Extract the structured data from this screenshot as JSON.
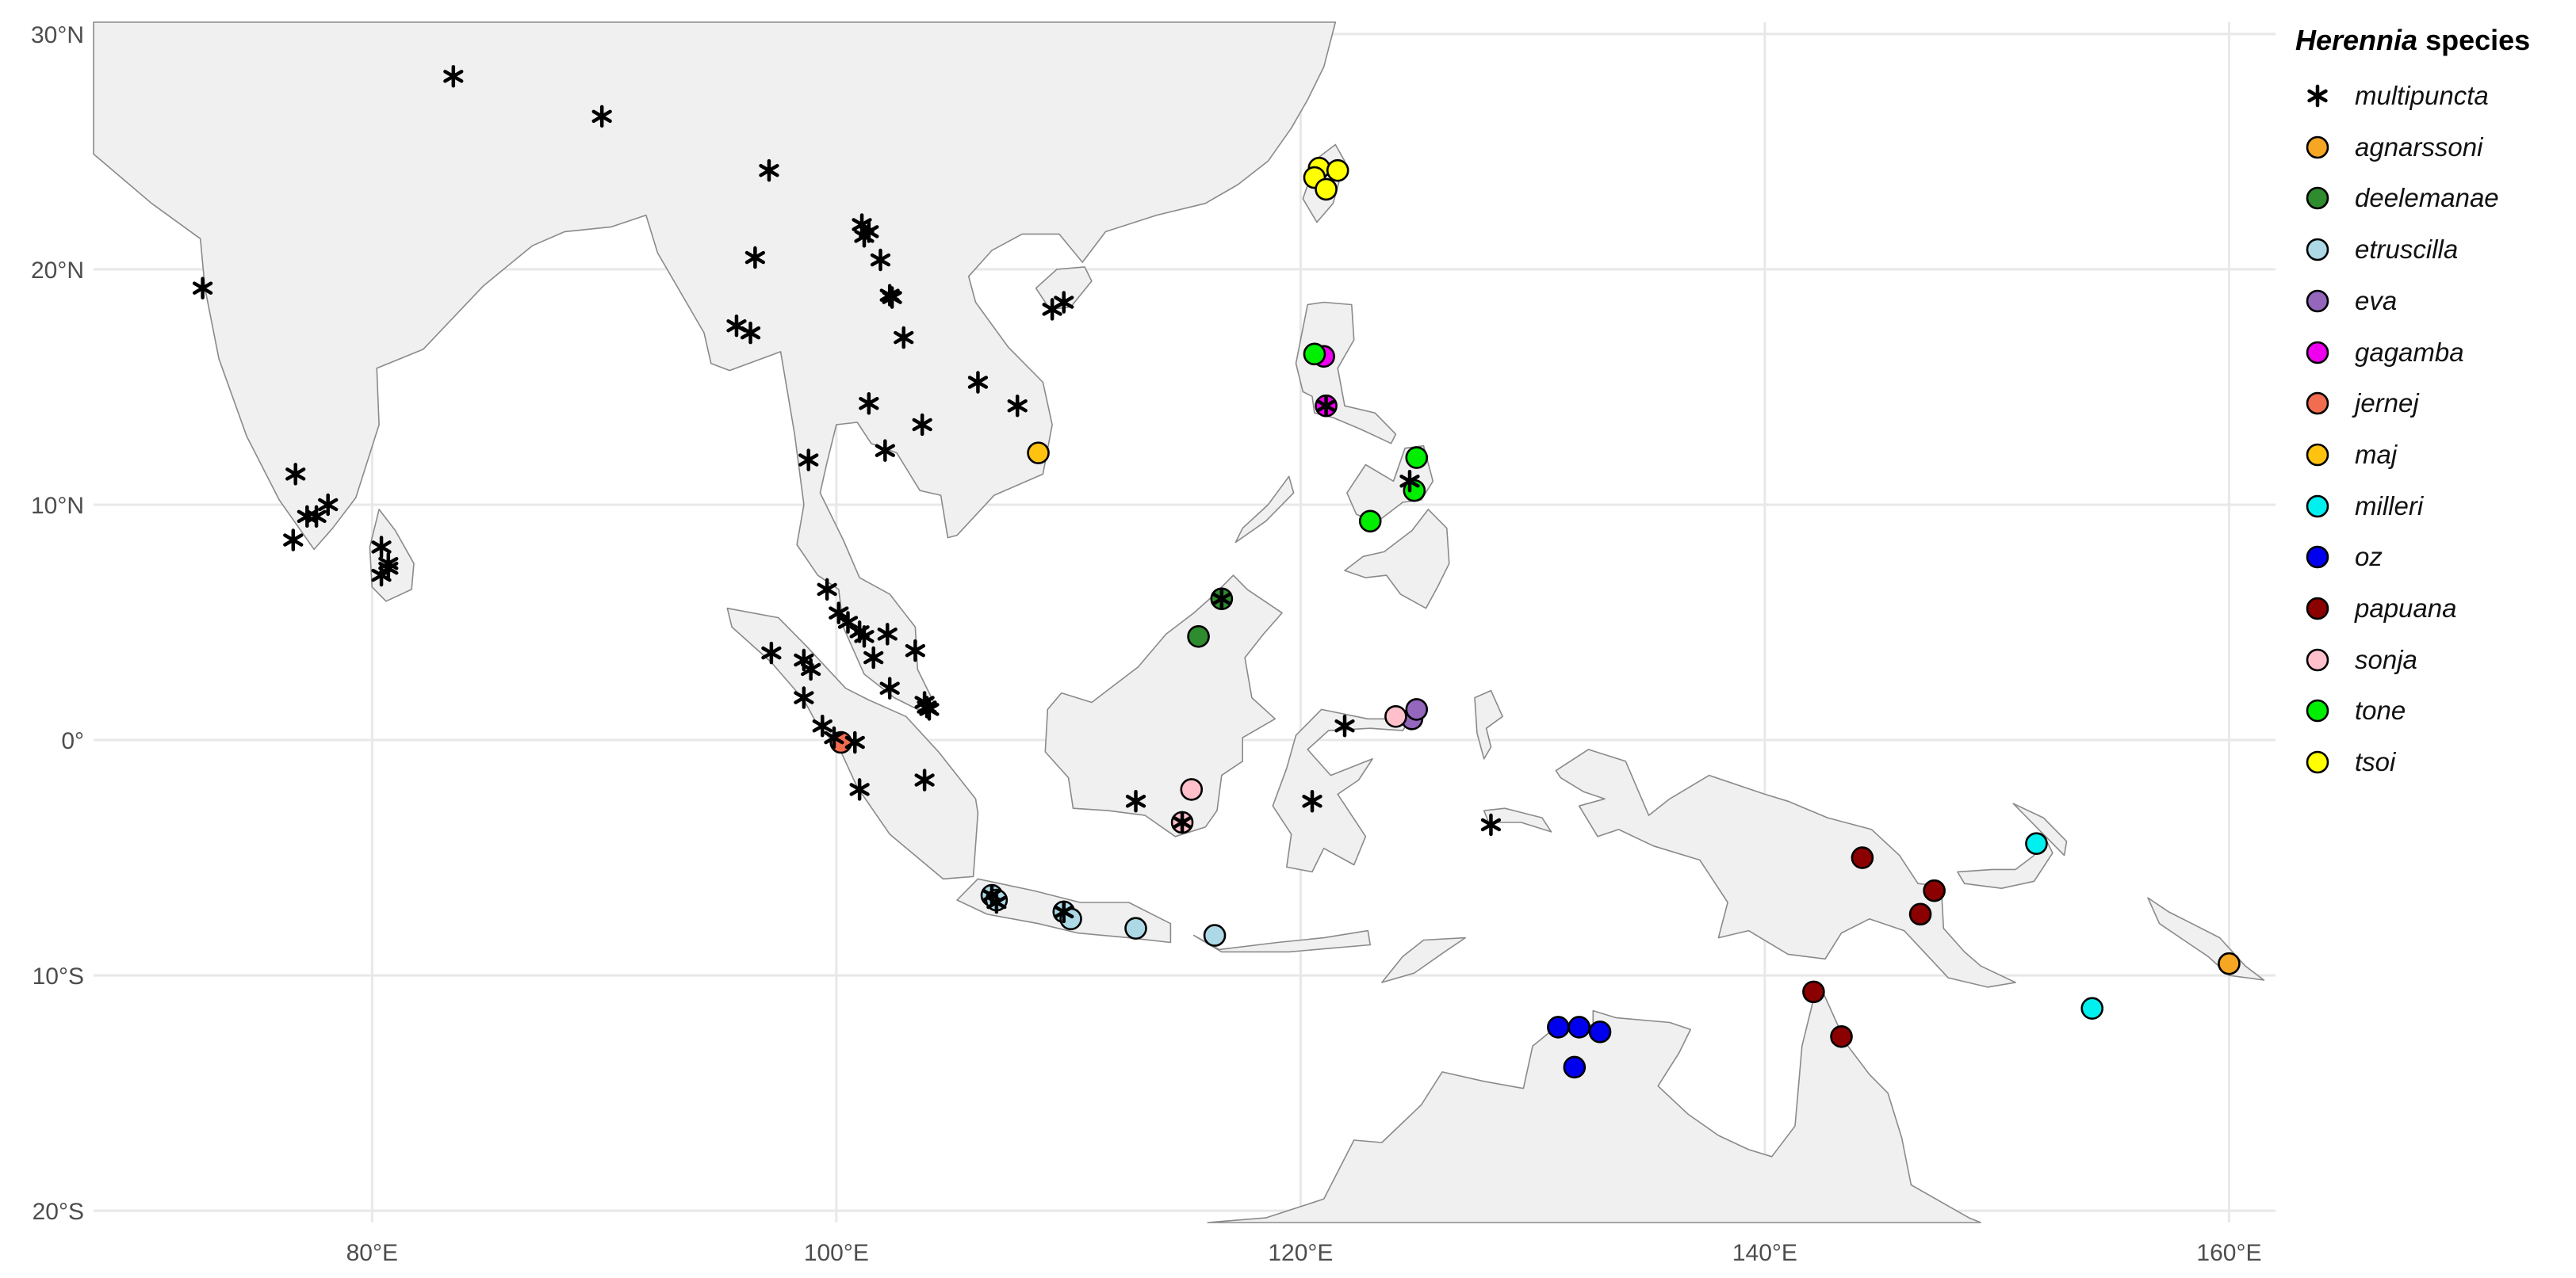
{
  "map": {
    "x_ticks": [
      {
        "lon": 80,
        "label": "80°E"
      },
      {
        "lon": 100,
        "label": "100°E"
      },
      {
        "lon": 120,
        "label": "120°E"
      },
      {
        "lon": 140,
        "label": "140°E"
      },
      {
        "lon": 160,
        "label": "160°E"
      }
    ],
    "y_ticks": [
      {
        "lat": 30,
        "label": "30°N"
      },
      {
        "lat": 20,
        "label": "20°N"
      },
      {
        "lat": 10,
        "label": "10°N"
      },
      {
        "lat": 0,
        "label": "0°"
      },
      {
        "lat": -10,
        "label": "10°S"
      },
      {
        "lat": -20,
        "label": "20°S"
      }
    ],
    "lon_range": [
      68,
      162
    ],
    "lat_range": [
      -20.5,
      30.5
    ],
    "colors": {
      "ocean": "#ffffff",
      "land": "#f0f0f0",
      "border": "#8a8a8a",
      "grid": "#e8e8e8"
    }
  },
  "legend": {
    "title_genus": "Herennia",
    "title_rest": " species",
    "species": [
      {
        "name": "multipuncta",
        "marker": "asterisk",
        "color": "#000000"
      },
      {
        "name": "agnarssoni",
        "marker": "circle",
        "color": "#f5a623"
      },
      {
        "name": "deelemanae",
        "marker": "circle",
        "color": "#2e8b2e"
      },
      {
        "name": "etruscilla",
        "marker": "circle",
        "color": "#add8e6"
      },
      {
        "name": "eva",
        "marker": "circle",
        "color": "#9467bd"
      },
      {
        "name": "gagamba",
        "marker": "circle",
        "color": "#ee00ee"
      },
      {
        "name": "jernej",
        "marker": "circle",
        "color": "#f26c4f"
      },
      {
        "name": "maj",
        "marker": "circle",
        "color": "#ffc20e"
      },
      {
        "name": "milleri",
        "marker": "circle",
        "color": "#00f0f0"
      },
      {
        "name": "oz",
        "marker": "circle",
        "color": "#0000ee"
      },
      {
        "name": "papuana",
        "marker": "circle",
        "color": "#8b0000"
      },
      {
        "name": "sonja",
        "marker": "circle",
        "color": "#ffc0cb"
      },
      {
        "name": "tone",
        "marker": "circle",
        "color": "#00ee00"
      },
      {
        "name": "tsoi",
        "marker": "circle",
        "color": "#ffff00"
      }
    ]
  },
  "records": {
    "multipuncta": [
      [
        83.5,
        28.2
      ],
      [
        89.9,
        26.5
      ],
      [
        72.7,
        19.2
      ],
      [
        76.7,
        11.3
      ],
      [
        77.2,
        9.5
      ],
      [
        77.6,
        9.5
      ],
      [
        78.1,
        10.0
      ],
      [
        76.6,
        8.5
      ],
      [
        80.4,
        8.2
      ],
      [
        80.7,
        7.3
      ],
      [
        80.4,
        7.0
      ],
      [
        80.7,
        7.5
      ],
      [
        97.1,
        24.2
      ],
      [
        96.5,
        20.5
      ],
      [
        101.1,
        21.9
      ],
      [
        101.4,
        21.6
      ],
      [
        101.2,
        21.4
      ],
      [
        101.9,
        20.4
      ],
      [
        102.3,
        18.9
      ],
      [
        102.4,
        18.8
      ],
      [
        95.7,
        17.6
      ],
      [
        96.3,
        17.3
      ],
      [
        102.9,
        17.1
      ],
      [
        109.3,
        18.3
      ],
      [
        109.8,
        18.6
      ],
      [
        106.1,
        15.2
      ],
      [
        107.8,
        14.2
      ],
      [
        101.4,
        14.3
      ],
      [
        103.7,
        13.4
      ],
      [
        102.1,
        12.3
      ],
      [
        98.8,
        11.9
      ],
      [
        99.6,
        6.4
      ],
      [
        100.1,
        5.4
      ],
      [
        100.5,
        5.0
      ],
      [
        101.0,
        4.6
      ],
      [
        101.2,
        4.4
      ],
      [
        101.6,
        3.5
      ],
      [
        102.2,
        4.5
      ],
      [
        103.4,
        3.8
      ],
      [
        97.2,
        3.7
      ],
      [
        98.6,
        3.4
      ],
      [
        98.9,
        3.0
      ],
      [
        98.6,
        1.8
      ],
      [
        102.3,
        2.2
      ],
      [
        103.8,
        1.6
      ],
      [
        103.9,
        1.4
      ],
      [
        104.0,
        1.3
      ],
      [
        99.4,
        0.6
      ],
      [
        99.9,
        0.1
      ],
      [
        100.8,
        -0.1
      ],
      [
        101.0,
        -2.1
      ],
      [
        103.8,
        -1.7
      ],
      [
        106.7,
        -6.6
      ],
      [
        106.9,
        -6.9
      ],
      [
        109.8,
        -7.3
      ],
      [
        112.9,
        -2.6
      ],
      [
        114.9,
        -3.5
      ],
      [
        116.6,
        6.0
      ],
      [
        120.5,
        -2.6
      ],
      [
        121.9,
        0.6
      ],
      [
        121.1,
        14.2
      ],
      [
        124.7,
        11.0
      ],
      [
        128.2,
        -3.6
      ]
    ],
    "agnarssoni": [
      [
        160.0,
        -9.5
      ]
    ],
    "deelemanae": [
      [
        116.6,
        6.0
      ],
      [
        115.6,
        4.4
      ]
    ],
    "etruscilla": [
      [
        106.7,
        -6.6
      ],
      [
        106.9,
        -6.8
      ],
      [
        109.8,
        -7.3
      ],
      [
        110.1,
        -7.6
      ],
      [
        112.9,
        -8.0
      ],
      [
        116.3,
        -8.3
      ]
    ],
    "eva": [
      [
        124.8,
        0.9
      ],
      [
        125.0,
        1.3
      ]
    ],
    "gagamba": [
      [
        121.0,
        16.3
      ],
      [
        121.1,
        14.2
      ]
    ],
    "jernej": [
      [
        100.2,
        -0.1
      ]
    ],
    "maj": [
      [
        108.7,
        12.2
      ]
    ],
    "milleri": [
      [
        151.7,
        -4.4
      ],
      [
        154.1,
        -11.4
      ]
    ],
    "oz": [
      [
        131.1,
        -12.2
      ],
      [
        132.0,
        -12.2
      ],
      [
        132.9,
        -12.4
      ],
      [
        131.8,
        -13.9
      ]
    ],
    "papuana": [
      [
        144.2,
        -5.0
      ],
      [
        147.3,
        -6.4
      ],
      [
        146.7,
        -7.4
      ],
      [
        142.1,
        -10.7
      ],
      [
        143.3,
        -12.6
      ]
    ],
    "sonja": [
      [
        115.3,
        -2.1
      ],
      [
        114.9,
        -3.5
      ],
      [
        124.1,
        1.0
      ]
    ],
    "tone": [
      [
        120.6,
        16.4
      ],
      [
        125.0,
        12.0
      ],
      [
        124.9,
        10.6
      ],
      [
        123.0,
        9.3
      ]
    ],
    "tsoi": [
      [
        120.8,
        24.3
      ],
      [
        121.6,
        24.2
      ],
      [
        120.6,
        23.9
      ],
      [
        121.1,
        23.4
      ]
    ]
  }
}
